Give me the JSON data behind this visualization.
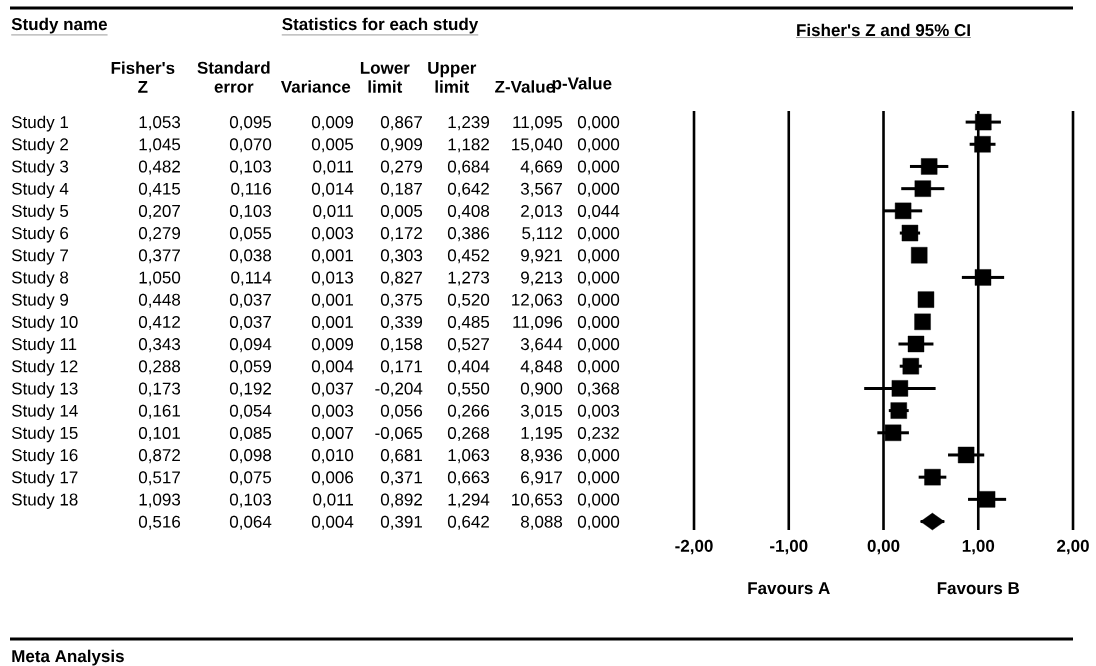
{
  "chart_data": [
    {
      "type": "other",
      "title": "Statistics for each study",
      "ylabel": "Study name",
      "categories": [
        "Fisher's Z",
        "Standard error",
        "Variance",
        "Lower limit",
        "Upper limit",
        "Z-Value",
        "p-Value"
      ],
      "y_categories": [
        "Study 1",
        "Study 2",
        "Study 3",
        "Study 4",
        "Study 5",
        "Study 6",
        "Study 7",
        "Study 8",
        "Study 9",
        "Study 10",
        "Study 11",
        "Study 12",
        "Study 13",
        "Study 14",
        "Study 15",
        "Study 16",
        "Study 17",
        "Study 18",
        null
      ],
      "cell_labels": [
        [
          "1,053",
          "0,095",
          "0,009",
          "0,867",
          "1,239",
          "11,095",
          "0,000"
        ],
        [
          "1,045",
          "0,070",
          "0,005",
          "0,909",
          "1,182",
          "15,040",
          "0,000"
        ],
        [
          "0,482",
          "0,103",
          "0,011",
          "0,279",
          "0,684",
          "4,669",
          "0,000"
        ],
        [
          "0,415",
          "0,116",
          "0,014",
          "0,187",
          "0,642",
          "3,567",
          "0,000"
        ],
        [
          "0,207",
          "0,103",
          "0,011",
          "0,005",
          "0,408",
          "2,013",
          "0,044"
        ],
        [
          "0,279",
          "0,055",
          "0,003",
          "0,172",
          "0,386",
          "5,112",
          "0,000"
        ],
        [
          "0,377",
          "0,038",
          "0,001",
          "0,303",
          "0,452",
          "9,921",
          "0,000"
        ],
        [
          "1,050",
          "0,114",
          "0,013",
          "0,827",
          "1,273",
          "9,213",
          "0,000"
        ],
        [
          "0,448",
          "0,037",
          "0,001",
          "0,375",
          "0,520",
          "12,063",
          "0,000"
        ],
        [
          "0,412",
          "0,037",
          "0,001",
          "0,339",
          "0,485",
          "11,096",
          "0,000"
        ],
        [
          "0,343",
          "0,094",
          "0,009",
          "0,158",
          "0,527",
          "3,644",
          "0,000"
        ],
        [
          "0,288",
          "0,059",
          "0,004",
          "0,171",
          "0,404",
          "4,848",
          "0,000"
        ],
        [
          "0,173",
          "0,192",
          "0,037",
          "-0,204",
          "0,550",
          "0,900",
          "0,368"
        ],
        [
          "0,161",
          "0,054",
          "0,003",
          "0,056",
          "0,266",
          "3,015",
          "0,003"
        ],
        [
          "0,101",
          "0,085",
          "0,007",
          "-0,065",
          "0,268",
          "1,195",
          "0,232"
        ],
        [
          "0,872",
          "0,098",
          "0,010",
          "0,681",
          "1,063",
          "8,936",
          "0,000"
        ],
        [
          "0,517",
          "0,075",
          "0,006",
          "0,371",
          "0,663",
          "6,917",
          "0,000"
        ],
        [
          "1,093",
          "0,103",
          "0,011",
          "0,892",
          "1,294",
          "10,653",
          "0,000"
        ],
        [
          "0,516",
          "0,064",
          "0,004",
          "0,391",
          "0,642",
          "8,088",
          "0,000"
        ]
      ],
      "annotations": [
        "Meta Analysis"
      ]
    },
    {
      "type": "scatter",
      "orientation": "horizontal",
      "title": "Fisher's Z and 95% CI",
      "categories": [
        null,
        null,
        null,
        null,
        null,
        null,
        null,
        null,
        null,
        null,
        null,
        null,
        null,
        null,
        null,
        null,
        null,
        null,
        null
      ],
      "series": [
        {
          "color": "#000000",
          "marker": "square",
          "values": [
            1.053,
            1.045,
            0.482,
            0.415,
            0.207,
            0.279,
            0.377,
            1.05,
            0.448,
            0.412,
            0.343,
            0.288,
            0.173,
            0.161,
            0.101,
            0.872,
            0.517,
            1.093,
            null
          ],
          "errors": [
            [
              0.867,
              1.239
            ],
            [
              0.909,
              1.182
            ],
            [
              0.279,
              0.684
            ],
            [
              0.187,
              0.642
            ],
            [
              0.005,
              0.408
            ],
            [
              0.172,
              0.386
            ],
            [
              0.303,
              0.452
            ],
            [
              0.827,
              1.273
            ],
            [
              0.375,
              0.52
            ],
            [
              0.339,
              0.485
            ],
            [
              0.158,
              0.527
            ],
            [
              0.171,
              0.404
            ],
            [
              -0.204,
              0.55
            ],
            [
              0.056,
              0.266
            ],
            [
              -0.065,
              0.268
            ],
            [
              0.681,
              1.063
            ],
            [
              0.371,
              0.663
            ],
            [
              0.892,
              1.294
            ],
            null
          ]
        },
        {
          "color": "#000000",
          "marker": "diamond",
          "values": [
            null,
            null,
            null,
            null,
            null,
            null,
            null,
            null,
            null,
            null,
            null,
            null,
            null,
            null,
            null,
            null,
            null,
            null,
            0.516
          ],
          "errors": [
            null,
            null,
            null,
            null,
            null,
            null,
            null,
            null,
            null,
            null,
            null,
            null,
            null,
            null,
            null,
            null,
            null,
            null,
            [
              0.391,
              0.642
            ]
          ]
        }
      ],
      "xlim": [
        -2,
        2
      ],
      "xticks": [
        {
          "value": -2,
          "label": "-2,00"
        },
        {
          "value": -1,
          "label": "-1,00"
        },
        {
          "value": 0,
          "label": "0,00"
        },
        {
          "value": 1,
          "label": "1,00"
        },
        {
          "value": 2,
          "label": "2,00"
        }
      ],
      "grid": "x",
      "tick_labels": "x",
      "annotations": [
        "Favours A",
        "Favours B"
      ]
    }
  ]
}
